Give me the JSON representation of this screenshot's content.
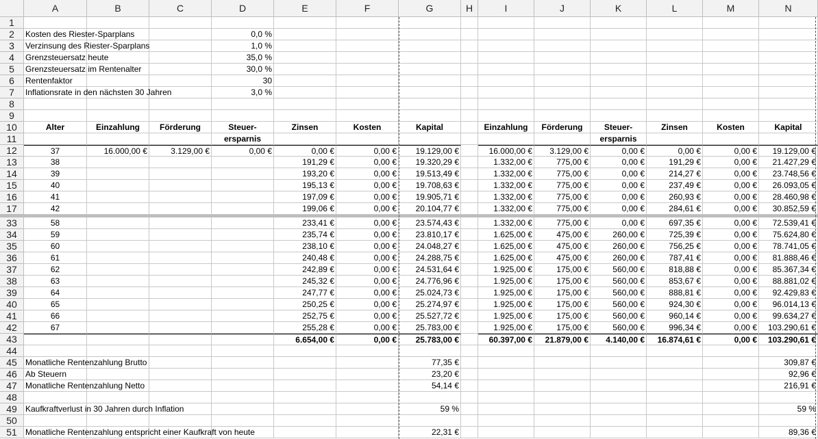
{
  "columns": [
    "A",
    "B",
    "C",
    "D",
    "E",
    "F",
    "G",
    "H",
    "I",
    "J",
    "K",
    "L",
    "M",
    "N"
  ],
  "rows": [
    {
      "n": "1",
      "cells": [
        "",
        "",
        "",
        "",
        "",
        "",
        "",
        "",
        "",
        "",
        "",
        "",
        "",
        ""
      ]
    },
    {
      "n": "2",
      "cells": [
        "Kosten des Riester-Sparplans",
        "",
        "",
        "0,0 %",
        "",
        "",
        "",
        "",
        "",
        "",
        "",
        "",
        "",
        ""
      ]
    },
    {
      "n": "3",
      "cells": [
        "Verzinsung des Riester-Sparplans",
        "",
        "",
        "1,0 %",
        "",
        "",
        "",
        "",
        "",
        "",
        "",
        "",
        "",
        ""
      ]
    },
    {
      "n": "4",
      "cells": [
        "Grenzsteuersatz heute",
        "",
        "",
        "35,0 %",
        "",
        "",
        "",
        "",
        "",
        "",
        "",
        "",
        "",
        ""
      ]
    },
    {
      "n": "5",
      "cells": [
        "Grenzsteuersatz im Rentenalter",
        "",
        "",
        "30,0 %",
        "",
        "",
        "",
        "",
        "",
        "",
        "",
        "",
        "",
        ""
      ]
    },
    {
      "n": "6",
      "cells": [
        "Rentenfaktor",
        "",
        "",
        "30",
        "",
        "",
        "",
        "",
        "",
        "",
        "",
        "",
        "",
        ""
      ]
    },
    {
      "n": "7",
      "cells": [
        "Inflationsrate in den nächsten 30 Jahren",
        "",
        "",
        "3,0 %",
        "",
        "",
        "",
        "",
        "",
        "",
        "",
        "",
        "",
        ""
      ]
    },
    {
      "n": "8",
      "cells": [
        "",
        "",
        "",
        "",
        "",
        "",
        "",
        "",
        "",
        "",
        "",
        "",
        "",
        ""
      ]
    },
    {
      "n": "9",
      "cells": [
        "",
        "",
        "",
        "",
        "",
        "",
        "",
        "",
        "",
        "",
        "",
        "",
        "",
        ""
      ]
    },
    {
      "n": "10",
      "cells": [
        "Alter",
        "Einzahlung",
        "Förderung",
        "Steuer-",
        "Zinsen",
        "Kosten",
        "Kapital",
        "",
        "Einzahlung",
        "Förderung",
        "Steuer-",
        "Zinsen",
        "Kosten",
        "Kapital"
      ]
    },
    {
      "n": "11",
      "cells": [
        "",
        "",
        "",
        "ersparnis",
        "",
        "",
        "",
        "",
        "",
        "",
        "ersparnis",
        "",
        "",
        ""
      ]
    },
    {
      "n": "12",
      "cells": [
        "37",
        "16.000,00 €",
        "3.129,00 €",
        "0,00 €",
        "0,00 €",
        "0,00 €",
        "19.129,00 €",
        "",
        "16.000,00 €",
        "3.129,00 €",
        "0,00 €",
        "0,00 €",
        "0,00 €",
        "19.129,00 €"
      ]
    },
    {
      "n": "13",
      "cells": [
        "38",
        "",
        "",
        "",
        "191,29 €",
        "0,00 €",
        "19.320,29 €",
        "",
        "1.332,00 €",
        "775,00 €",
        "0,00 €",
        "191,29 €",
        "0,00 €",
        "21.427,29 €"
      ]
    },
    {
      "n": "14",
      "cells": [
        "39",
        "",
        "",
        "",
        "193,20 €",
        "0,00 €",
        "19.513,49 €",
        "",
        "1.332,00 €",
        "775,00 €",
        "0,00 €",
        "214,27 €",
        "0,00 €",
        "23.748,56 €"
      ]
    },
    {
      "n": "15",
      "cells": [
        "40",
        "",
        "",
        "",
        "195,13 €",
        "0,00 €",
        "19.708,63 €",
        "",
        "1.332,00 €",
        "775,00 €",
        "0,00 €",
        "237,49 €",
        "0,00 €",
        "26.093,05 €"
      ]
    },
    {
      "n": "16",
      "cells": [
        "41",
        "",
        "",
        "",
        "197,09 €",
        "0,00 €",
        "19.905,71 €",
        "",
        "1.332,00 €",
        "775,00 €",
        "0,00 €",
        "260,93 €",
        "0,00 €",
        "28.460,98 €"
      ]
    },
    {
      "n": "17",
      "cells": [
        "42",
        "",
        "",
        "",
        "199,06 €",
        "0,00 €",
        "20.104,77 €",
        "",
        "1.332,00 €",
        "775,00 €",
        "0,00 €",
        "284,61 €",
        "0,00 €",
        "30.852,59 €"
      ]
    },
    {
      "n": "33",
      "cells": [
        "58",
        "",
        "",
        "",
        "233,41 €",
        "0,00 €",
        "23.574,43 €",
        "",
        "1.332,00 €",
        "775,00 €",
        "0,00 €",
        "697,35 €",
        "0,00 €",
        "72.539,41 €"
      ]
    },
    {
      "n": "34",
      "cells": [
        "59",
        "",
        "",
        "",
        "235,74 €",
        "0,00 €",
        "23.810,17 €",
        "",
        "1.625,00 €",
        "475,00 €",
        "260,00 €",
        "725,39 €",
        "0,00 €",
        "75.624,80 €"
      ]
    },
    {
      "n": "35",
      "cells": [
        "60",
        "",
        "",
        "",
        "238,10 €",
        "0,00 €",
        "24.048,27 €",
        "",
        "1.625,00 €",
        "475,00 €",
        "260,00 €",
        "756,25 €",
        "0,00 €",
        "78.741,05 €"
      ]
    },
    {
      "n": "36",
      "cells": [
        "61",
        "",
        "",
        "",
        "240,48 €",
        "0,00 €",
        "24.288,75 €",
        "",
        "1.625,00 €",
        "475,00 €",
        "260,00 €",
        "787,41 €",
        "0,00 €",
        "81.888,46 €"
      ]
    },
    {
      "n": "37",
      "cells": [
        "62",
        "",
        "",
        "",
        "242,89 €",
        "0,00 €",
        "24.531,64 €",
        "",
        "1.925,00 €",
        "175,00 €",
        "560,00 €",
        "818,88 €",
        "0,00 €",
        "85.367,34 €"
      ]
    },
    {
      "n": "38",
      "cells": [
        "63",
        "",
        "",
        "",
        "245,32 €",
        "0,00 €",
        "24.776,96 €",
        "",
        "1.925,00 €",
        "175,00 €",
        "560,00 €",
        "853,67 €",
        "0,00 €",
        "88.881,02 €"
      ]
    },
    {
      "n": "39",
      "cells": [
        "64",
        "",
        "",
        "",
        "247,77 €",
        "0,00 €",
        "25.024,73 €",
        "",
        "1.925,00 €",
        "175,00 €",
        "560,00 €",
        "888,81 €",
        "0,00 €",
        "92.429,83 €"
      ]
    },
    {
      "n": "40",
      "cells": [
        "65",
        "",
        "",
        "",
        "250,25 €",
        "0,00 €",
        "25.274,97 €",
        "",
        "1.925,00 €",
        "175,00 €",
        "560,00 €",
        "924,30 €",
        "0,00 €",
        "96.014,13 €"
      ]
    },
    {
      "n": "41",
      "cells": [
        "66",
        "",
        "",
        "",
        "252,75 €",
        "0,00 €",
        "25.527,72 €",
        "",
        "1.925,00 €",
        "175,00 €",
        "560,00 €",
        "960,14 €",
        "0,00 €",
        "99.634,27 €"
      ]
    },
    {
      "n": "42",
      "cells": [
        "67",
        "",
        "",
        "",
        "255,28 €",
        "0,00 €",
        "25.783,00 €",
        "",
        "1.925,00 €",
        "175,00 €",
        "560,00 €",
        "996,34 €",
        "0,00 €",
        "103.290,61 €"
      ]
    },
    {
      "n": "43",
      "cells": [
        "",
        "",
        "",
        "",
        "6.654,00 €",
        "0,00 €",
        "25.783,00 €",
        "",
        "60.397,00 €",
        "21.879,00 €",
        "4.140,00 €",
        "16.874,61 €",
        "0,00 €",
        "103.290,61 €"
      ]
    },
    {
      "n": "44",
      "cells": [
        "",
        "",
        "",
        "",
        "",
        "",
        "",
        "",
        "",
        "",
        "",
        "",
        "",
        ""
      ]
    },
    {
      "n": "45",
      "cells": [
        "Monatliche Rentenzahlung Brutto",
        "",
        "",
        "",
        "",
        "",
        "77,35 €",
        "",
        "",
        "",
        "",
        "",
        "",
        "309,87 €"
      ]
    },
    {
      "n": "46",
      "cells": [
        "Ab Steuern",
        "",
        "",
        "",
        "",
        "",
        "23,20 €",
        "",
        "",
        "",
        "",
        "",
        "",
        "92,96 €"
      ]
    },
    {
      "n": "47",
      "cells": [
        "Monatliche Rentenzahlung Netto",
        "",
        "",
        "",
        "",
        "",
        "54,14 €",
        "",
        "",
        "",
        "",
        "",
        "",
        "216,91 €"
      ]
    },
    {
      "n": "48",
      "cells": [
        "",
        "",
        "",
        "",
        "",
        "",
        "",
        "",
        "",
        "",
        "",
        "",
        "",
        ""
      ]
    },
    {
      "n": "49",
      "cells": [
        "Kaufkraftverlust in 30 Jahren durch Inflation",
        "",
        "",
        "",
        "",
        "",
        "59 %",
        "",
        "",
        "",
        "",
        "",
        "",
        "59 %"
      ]
    },
    {
      "n": "50",
      "cells": [
        "",
        "",
        "",
        "",
        "",
        "",
        "",
        "",
        "",
        "",
        "",
        "",
        "",
        ""
      ]
    },
    {
      "n": "51",
      "cells": [
        "Monatliche Rentenzahlung entspricht einer Kaufkraft von heute",
        "",
        "",
        "",
        "",
        "",
        "22,31 €",
        "",
        "",
        "",
        "",
        "",
        "",
        "89,36 €"
      ]
    }
  ]
}
